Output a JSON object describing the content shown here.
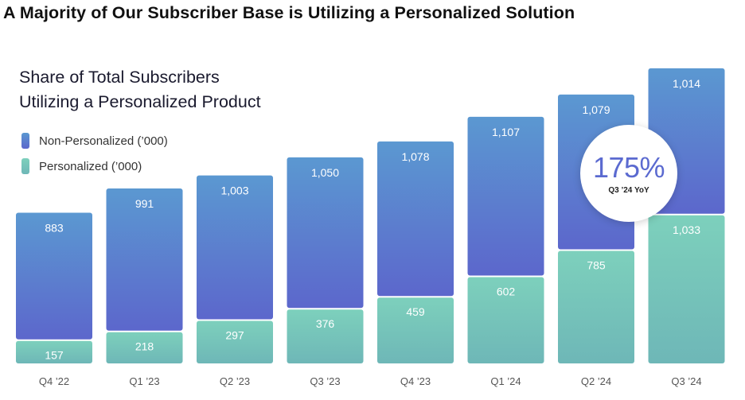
{
  "page": {
    "title": "A Majority of Our Subscriber Base is Utilizing a Personalized Solution"
  },
  "legend": {
    "non_personalized": "Non-Personalized (’000)",
    "personalized": "Personalized (’000)"
  },
  "badge": {
    "value": "175%",
    "label": "Q3 ’24 YoY"
  },
  "colors": {
    "non_personalized_top": "#5b98d1",
    "non_personalized_bottom": "#5c67cc",
    "personalized_top": "#7dd0bc",
    "personalized_bottom": "#6eb7b7"
  },
  "chart_data": {
    "type": "bar",
    "stacked": true,
    "title_lines": [
      "Share of Total Subscribers",
      "Utilizing a Personalized Product"
    ],
    "categories": [
      "Q4 ’22",
      "Q1 ’23",
      "Q2 ’23",
      "Q3 ’23",
      "Q4 ’23",
      "Q1 ’24",
      "Q2 ’24",
      "Q3 ’24"
    ],
    "series": [
      {
        "name": "Personalized (’000)",
        "values": [
          157,
          218,
          297,
          376,
          459,
          602,
          785,
          1033
        ]
      },
      {
        "name": "Non-Personalized (’000)",
        "values": [
          883,
          991,
          1003,
          1050,
          1078,
          1107,
          1079,
          1014
        ]
      }
    ],
    "labels": {
      "personalized": [
        "157",
        "218",
        "297",
        "376",
        "459",
        "602",
        "785",
        "1,033"
      ],
      "non_personalized": [
        "883",
        "991",
        "1,003",
        "1,050",
        "1,078",
        "1,107",
        "1,079",
        "1,014"
      ]
    },
    "ylim": [
      0,
      2050
    ],
    "grid": false,
    "legend_position": "top-left"
  }
}
